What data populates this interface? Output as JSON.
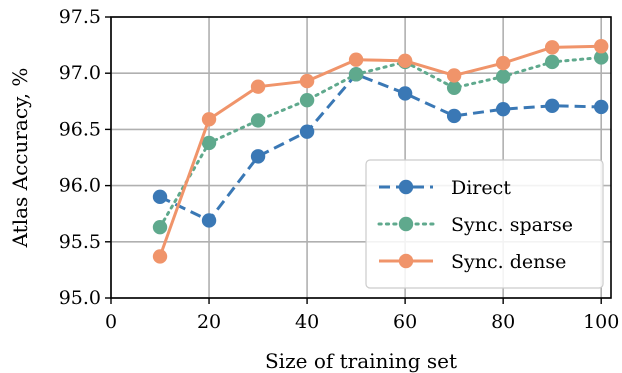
{
  "chart_data": {
    "type": "line",
    "title": "",
    "xlabel": "Size of training set",
    "ylabel": "Atlas Accuracy, %",
    "xlim": [
      0,
      102
    ],
    "ylim": [
      95.0,
      97.5
    ],
    "x_ticks": [
      0,
      20,
      40,
      60,
      80,
      100
    ],
    "y_ticks": [
      95.0,
      95.5,
      96.0,
      96.5,
      97.0,
      97.5
    ],
    "x_tick_labels": [
      "0",
      "20",
      "40",
      "60",
      "80",
      "100"
    ],
    "y_tick_labels": [
      "95.0",
      "95.5",
      "96.0",
      "96.5",
      "97.0",
      "97.5"
    ],
    "grid": true,
    "legend_position": "lower-right",
    "x": [
      10,
      20,
      30,
      40,
      50,
      60,
      70,
      80,
      90,
      100
    ],
    "series": [
      {
        "name": "Direct",
        "values": [
          95.9,
          95.69,
          96.26,
          96.48,
          96.99,
          96.82,
          96.62,
          96.68,
          96.71,
          96.7
        ],
        "color": "#3a78b5",
        "line_style": "dashed"
      },
      {
        "name": "Sync. sparse",
        "values": [
          95.63,
          96.38,
          96.58,
          96.76,
          96.99,
          97.1,
          96.87,
          96.97,
          97.1,
          97.14
        ],
        "color": "#5fa98d",
        "line_style": "dotted"
      },
      {
        "name": "Sync. dense",
        "values": [
          95.37,
          96.59,
          96.88,
          96.93,
          97.12,
          97.11,
          96.98,
          97.09,
          97.23,
          97.24
        ],
        "color": "#f0946a",
        "line_style": "solid"
      }
    ]
  }
}
